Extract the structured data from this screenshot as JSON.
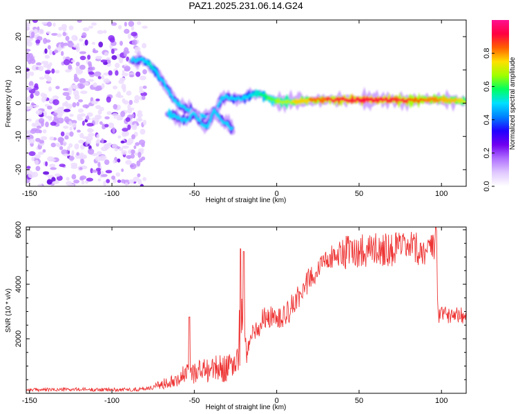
{
  "chart_data": [
    {
      "type": "heatmap",
      "title": "PAZ1.2025.231.06.14.G24",
      "xlabel": "Height of straight line (km)",
      "ylabel": "Frequency (Hz)",
      "xlim": [
        -152,
        115
      ],
      "ylim": [
        -25,
        25
      ],
      "xticks": [
        -150,
        -100,
        -50,
        0,
        50,
        100
      ],
      "yticks": [
        20,
        10,
        0,
        -10,
        -20
      ],
      "colorbar": {
        "label": "Normalized spectral amplitude",
        "ticks": [
          0.0,
          0.2,
          0.4,
          0.6,
          0.8
        ],
        "range": [
          0,
          1
        ],
        "colormap": [
          "#ffffff",
          "#e0c8ff",
          "#b070ff",
          "#7000f0",
          "#2000ff",
          "#0080ff",
          "#00e0ff",
          "#00ff60",
          "#a0ff00",
          "#ffe000",
          "#ff6000",
          "#ff0040",
          "#ff1090"
        ]
      },
      "noise_region": {
        "x_from": -152,
        "x_to": -80,
        "freq_from": -25,
        "freq_to": 25,
        "amplitude": 0.05
      },
      "ridge": {
        "x": [
          -88,
          -82,
          -78,
          -74,
          -70,
          -66,
          -62,
          -58,
          -54,
          -50,
          -46,
          -42,
          -38,
          -34,
          -30,
          -28,
          -25,
          -20,
          -15,
          -10,
          -5,
          0,
          10,
          20,
          30,
          40,
          50,
          60,
          70,
          80,
          90,
          100,
          110,
          115
        ],
        "frequency": [
          13,
          13,
          12,
          10,
          7,
          4,
          1,
          -1,
          -2,
          -3,
          -4,
          -4,
          -4,
          1,
          2,
          1.5,
          1.5,
          1.5,
          2.5,
          3,
          1.5,
          0.5,
          0.5,
          0.8,
          1,
          1,
          1,
          1,
          1,
          0.8,
          1,
          1,
          0.8,
          0.5
        ],
        "amplitude": [
          0.25,
          0.4,
          0.55,
          0.5,
          0.45,
          0.4,
          0.35,
          0.3,
          0.3,
          0.3,
          0.3,
          0.25,
          0.25,
          0.3,
          0.35,
          0.4,
          0.4,
          0.45,
          0.5,
          0.55,
          0.6,
          0.65,
          0.72,
          0.8,
          0.85,
          0.88,
          0.9,
          0.9,
          0.88,
          0.85,
          0.82,
          0.8,
          0.75,
          0.7
        ]
      },
      "secondary_ridge": {
        "x": [
          -66,
          -62,
          -58,
          -54,
          -50,
          -46,
          -42,
          -38,
          -34,
          -30,
          -27
        ],
        "frequency": [
          -3,
          -4,
          -5,
          -5,
          -3,
          -6,
          -7,
          -2,
          -5,
          -6,
          -8
        ],
        "amplitude": [
          0.3,
          0.35,
          0.3,
          0.28,
          0.25,
          0.22,
          0.2,
          0.2,
          0.18,
          0.15,
          0.1
        ]
      }
    },
    {
      "type": "line",
      "title": "",
      "xlabel": "Height of straight line (km)",
      "ylabel": "SNR (10 * v/v)",
      "xlim": [
        -152,
        115
      ],
      "ylim": [
        0,
        6100
      ],
      "xticks": [
        -150,
        -100,
        -50,
        0,
        50,
        100
      ],
      "yticks": [
        2000,
        4000,
        6000
      ],
      "color": "#ee3333",
      "x": [
        -152,
        -140,
        -120,
        -100,
        -85,
        -75,
        -70,
        -65,
        -60,
        -55,
        -50,
        -45,
        -40,
        -35,
        -30,
        -25,
        -22,
        -20,
        -18,
        -15,
        -10,
        -5,
        0,
        5,
        10,
        15,
        20,
        25,
        30,
        35,
        40,
        50,
        60,
        70,
        80,
        90,
        95,
        97,
        98,
        100,
        105,
        110,
        115
      ],
      "y": [
        130,
        130,
        140,
        130,
        140,
        220,
        320,
        450,
        560,
        700,
        800,
        850,
        880,
        900,
        950,
        1000,
        2300,
        2300,
        1400,
        2100,
        2600,
        2900,
        2650,
        2800,
        3250,
        3700,
        4200,
        4600,
        4900,
        5050,
        5150,
        5250,
        5300,
        5300,
        5300,
        5250,
        5250,
        5350,
        2800,
        2900,
        2900,
        2950,
        2850
      ],
      "spikes": [
        {
          "x": -53,
          "y": 2800
        },
        {
          "x": -22,
          "y": 5300
        },
        {
          "x": -20,
          "y": 5200
        },
        {
          "x": 96.5,
          "y": 6100
        }
      ],
      "jitter": {
        "before_-20": 0.55,
        "after_-20": 0.12,
        "after_97": 0.12
      }
    }
  ]
}
